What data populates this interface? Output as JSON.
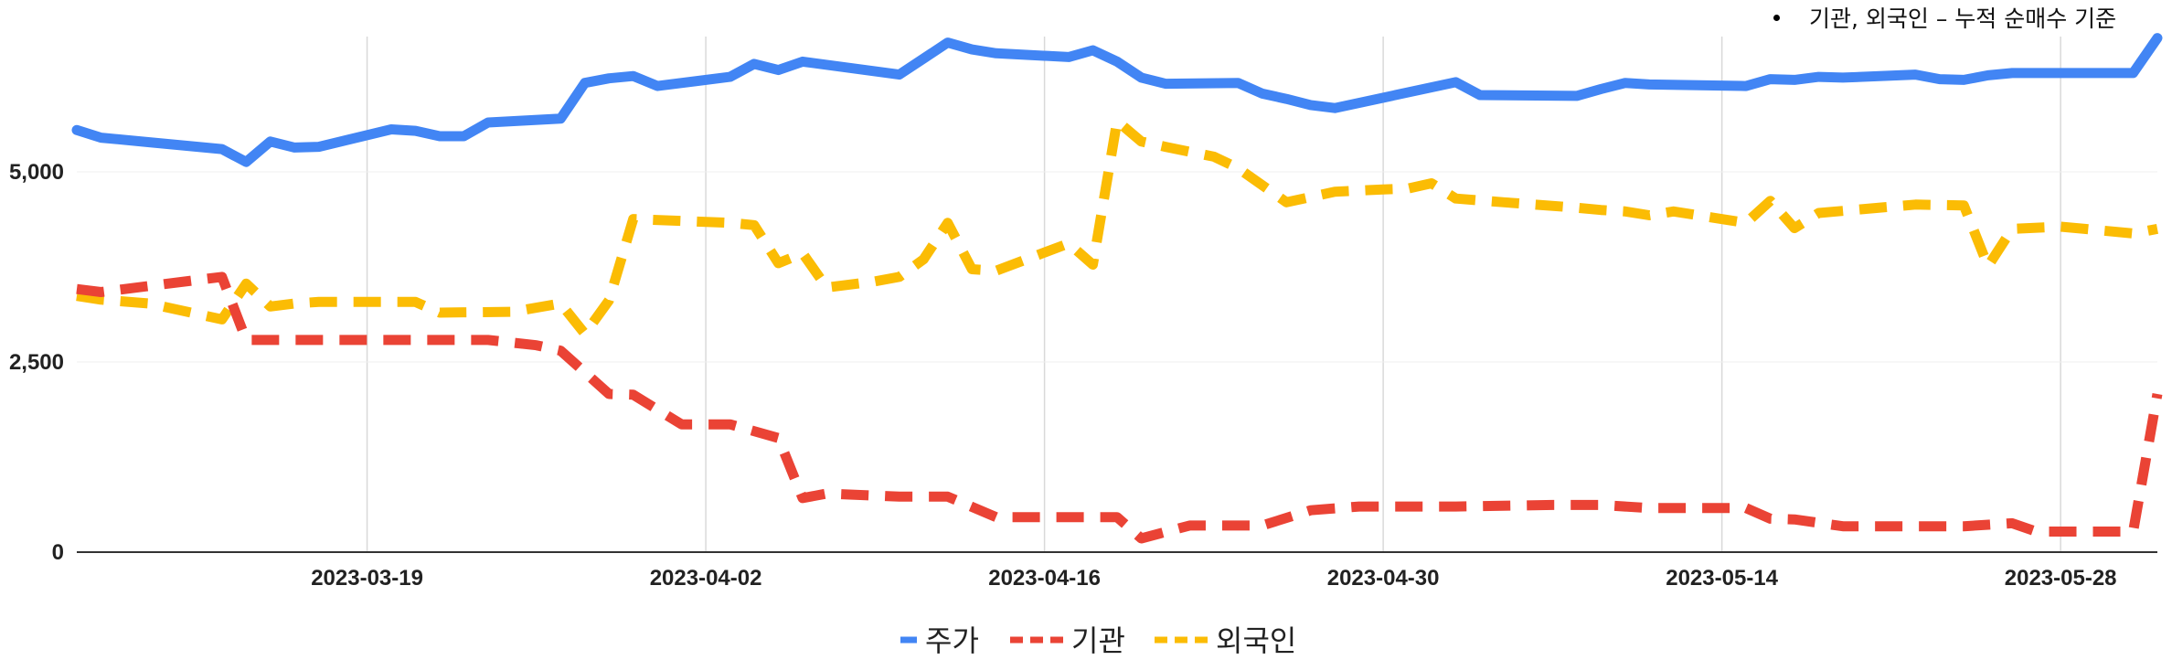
{
  "note": {
    "text": "기관, 외국인 – 누적 순매수 기준"
  },
  "chart_data": {
    "type": "line",
    "title": "",
    "xlabel": "",
    "ylabel": "",
    "ylim": [
      0,
      6900
    ],
    "yticks": [
      0,
      2500,
      5000
    ],
    "ytick_labels": [
      "0",
      "2,500",
      "5,000"
    ],
    "xlim": [
      "2023-03-07",
      "2023-06-01"
    ],
    "xticks": [
      "2023-03-19",
      "2023-04-02",
      "2023-04-16",
      "2023-04-30",
      "2023-05-14",
      "2023-05-28"
    ],
    "grid": "vertical",
    "legend_position": "bottom",
    "series": [
      {
        "name": "주가",
        "color": "#4285F4",
        "dash": "solid",
        "points": [
          [
            "2023-03-07",
            5550
          ],
          [
            "2023-03-08",
            5450
          ],
          [
            "2023-03-10",
            5390
          ],
          [
            "2023-03-13",
            5300
          ],
          [
            "2023-03-14",
            5130
          ],
          [
            "2023-03-15",
            5400
          ],
          [
            "2023-03-16",
            5320
          ],
          [
            "2023-03-17",
            5330
          ],
          [
            "2023-03-20",
            5560
          ],
          [
            "2023-03-21",
            5540
          ],
          [
            "2023-03-22",
            5470
          ],
          [
            "2023-03-23",
            5470
          ],
          [
            "2023-03-24",
            5650
          ],
          [
            "2023-03-27",
            5700
          ],
          [
            "2023-03-28",
            6170
          ],
          [
            "2023-03-29",
            6230
          ],
          [
            "2023-03-30",
            6260
          ],
          [
            "2023-03-31",
            6130
          ],
          [
            "2023-04-03",
            6250
          ],
          [
            "2023-04-04",
            6420
          ],
          [
            "2023-04-05",
            6340
          ],
          [
            "2023-04-06",
            6450
          ],
          [
            "2023-04-10",
            6280
          ],
          [
            "2023-04-12",
            6700
          ],
          [
            "2023-04-13",
            6610
          ],
          [
            "2023-04-14",
            6560
          ],
          [
            "2023-04-17",
            6510
          ],
          [
            "2023-04-18",
            6600
          ],
          [
            "2023-04-19",
            6450
          ],
          [
            "2023-04-20",
            6240
          ],
          [
            "2023-04-21",
            6160
          ],
          [
            "2023-04-24",
            6170
          ],
          [
            "2023-04-25",
            6030
          ],
          [
            "2023-04-26",
            5960
          ],
          [
            "2023-04-27",
            5880
          ],
          [
            "2023-04-28",
            5840
          ],
          [
            "2023-05-03",
            6180
          ],
          [
            "2023-05-04",
            6010
          ],
          [
            "2023-05-08",
            6000
          ],
          [
            "2023-05-09",
            6090
          ],
          [
            "2023-05-10",
            6170
          ],
          [
            "2023-05-11",
            6150
          ],
          [
            "2023-05-15",
            6130
          ],
          [
            "2023-05-16",
            6220
          ],
          [
            "2023-05-17",
            6210
          ],
          [
            "2023-05-18",
            6250
          ],
          [
            "2023-05-19",
            6240
          ],
          [
            "2023-05-22",
            6280
          ],
          [
            "2023-05-23",
            6220
          ],
          [
            "2023-05-24",
            6210
          ],
          [
            "2023-05-25",
            6270
          ],
          [
            "2023-05-26",
            6300
          ],
          [
            "2023-05-31",
            6300
          ],
          [
            "2023-06-01",
            6760
          ]
        ]
      },
      {
        "name": "기관",
        "color": "#EA4335",
        "dash": "dashed",
        "points": [
          [
            "2023-03-07",
            3460
          ],
          [
            "2023-03-08",
            3420
          ],
          [
            "2023-03-10",
            3500
          ],
          [
            "2023-03-12",
            3580
          ],
          [
            "2023-03-13",
            3620
          ],
          [
            "2023-03-14",
            2790
          ],
          [
            "2023-03-20",
            2790
          ],
          [
            "2023-03-24",
            2790
          ],
          [
            "2023-03-26",
            2720
          ],
          [
            "2023-03-27",
            2650
          ],
          [
            "2023-03-29",
            2080
          ],
          [
            "2023-03-30",
            2070
          ],
          [
            "2023-04-01",
            1680
          ],
          [
            "2023-04-03",
            1680
          ],
          [
            "2023-04-05",
            1500
          ],
          [
            "2023-04-06",
            710
          ],
          [
            "2023-04-07",
            770
          ],
          [
            "2023-04-10",
            730
          ],
          [
            "2023-04-12",
            730
          ],
          [
            "2023-04-14",
            460
          ],
          [
            "2023-04-17",
            460
          ],
          [
            "2023-04-19",
            460
          ],
          [
            "2023-04-20",
            180
          ],
          [
            "2023-04-22",
            350
          ],
          [
            "2023-04-25",
            350
          ],
          [
            "2023-04-27",
            550
          ],
          [
            "2023-04-29",
            600
          ],
          [
            "2023-05-03",
            600
          ],
          [
            "2023-05-07",
            620
          ],
          [
            "2023-05-09",
            620
          ],
          [
            "2023-05-11",
            580
          ],
          [
            "2023-05-15",
            580
          ],
          [
            "2023-05-16",
            440
          ],
          [
            "2023-05-17",
            430
          ],
          [
            "2023-05-19",
            340
          ],
          [
            "2023-05-22",
            340
          ],
          [
            "2023-05-24",
            340
          ],
          [
            "2023-05-26",
            380
          ],
          [
            "2023-05-27",
            270
          ],
          [
            "2023-05-30",
            270
          ],
          [
            "2023-05-31",
            270
          ],
          [
            "2023-06-01",
            2080
          ]
        ]
      },
      {
        "name": "외국인",
        "color": "#FBBC04",
        "dash": "dashed",
        "points": [
          [
            "2023-03-07",
            3370
          ],
          [
            "2023-03-08",
            3320
          ],
          [
            "2023-03-10",
            3270
          ],
          [
            "2023-03-12",
            3130
          ],
          [
            "2023-03-13",
            3060
          ],
          [
            "2023-03-14",
            3530
          ],
          [
            "2023-03-15",
            3230
          ],
          [
            "2023-03-16",
            3270
          ],
          [
            "2023-03-17",
            3290
          ],
          [
            "2023-03-20",
            3290
          ],
          [
            "2023-03-21",
            3290
          ],
          [
            "2023-03-22",
            3150
          ],
          [
            "2023-03-25",
            3160
          ],
          [
            "2023-03-27",
            3270
          ],
          [
            "2023-03-28",
            2870
          ],
          [
            "2023-03-29",
            3310
          ],
          [
            "2023-03-30",
            4380
          ],
          [
            "2023-04-03",
            4330
          ],
          [
            "2023-04-04",
            4300
          ],
          [
            "2023-04-05",
            3800
          ],
          [
            "2023-04-06",
            3930
          ],
          [
            "2023-04-07",
            3480
          ],
          [
            "2023-04-09",
            3560
          ],
          [
            "2023-04-10",
            3620
          ],
          [
            "2023-04-11",
            3850
          ],
          [
            "2023-04-12",
            4330
          ],
          [
            "2023-04-13",
            3720
          ],
          [
            "2023-04-14",
            3700
          ],
          [
            "2023-04-16",
            3940
          ],
          [
            "2023-04-17",
            4060
          ],
          [
            "2023-04-18",
            3780
          ],
          [
            "2023-04-19",
            5670
          ],
          [
            "2023-04-20",
            5400
          ],
          [
            "2023-04-21",
            5330
          ],
          [
            "2023-04-23",
            5200
          ],
          [
            "2023-04-24",
            5050
          ],
          [
            "2023-04-26",
            4600
          ],
          [
            "2023-04-28",
            4740
          ],
          [
            "2023-04-30",
            4770
          ],
          [
            "2023-05-01",
            4780
          ],
          [
            "2023-05-02",
            4850
          ],
          [
            "2023-05-03",
            4650
          ],
          [
            "2023-05-05",
            4600
          ],
          [
            "2023-05-08",
            4530
          ],
          [
            "2023-05-09",
            4500
          ],
          [
            "2023-05-10",
            4480
          ],
          [
            "2023-05-11",
            4430
          ],
          [
            "2023-05-12",
            4480
          ],
          [
            "2023-05-15",
            4330
          ],
          [
            "2023-05-16",
            4620
          ],
          [
            "2023-05-17",
            4260
          ],
          [
            "2023-05-18",
            4460
          ],
          [
            "2023-05-22",
            4570
          ],
          [
            "2023-05-24",
            4560
          ],
          [
            "2023-05-25",
            3760
          ],
          [
            "2023-05-26",
            4250
          ],
          [
            "2023-05-28",
            4280
          ],
          [
            "2023-05-29",
            4250
          ],
          [
            "2023-05-31",
            4190
          ],
          [
            "2023-06-01",
            4250
          ]
        ]
      }
    ]
  }
}
